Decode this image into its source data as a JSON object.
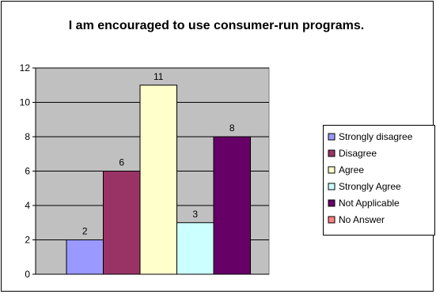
{
  "chart_data": {
    "type": "bar",
    "title": "I am encouraged to use consumer-run programs.",
    "categories": [
      "Strongly disagree",
      "Disagree",
      "Agree",
      "Strongly Agree",
      "Not Applicable",
      "No Answer"
    ],
    "values": [
      2,
      6,
      11,
      3,
      8,
      0
    ],
    "data_labels": [
      "2",
      "6",
      "11",
      "3",
      "8",
      ""
    ],
    "colors": [
      "#9999ff",
      "#993366",
      "#ffffcc",
      "#ccffff",
      "#660066",
      "#ff8080"
    ],
    "ylim": [
      0,
      12
    ],
    "yticks": [
      0,
      2,
      4,
      6,
      8,
      10,
      12
    ],
    "ytick_labels": [
      "0",
      "2",
      "4",
      "6",
      "8",
      "10",
      "12"
    ],
    "plot_background": "#c0c0c0",
    "grid": true,
    "legend": "right"
  }
}
